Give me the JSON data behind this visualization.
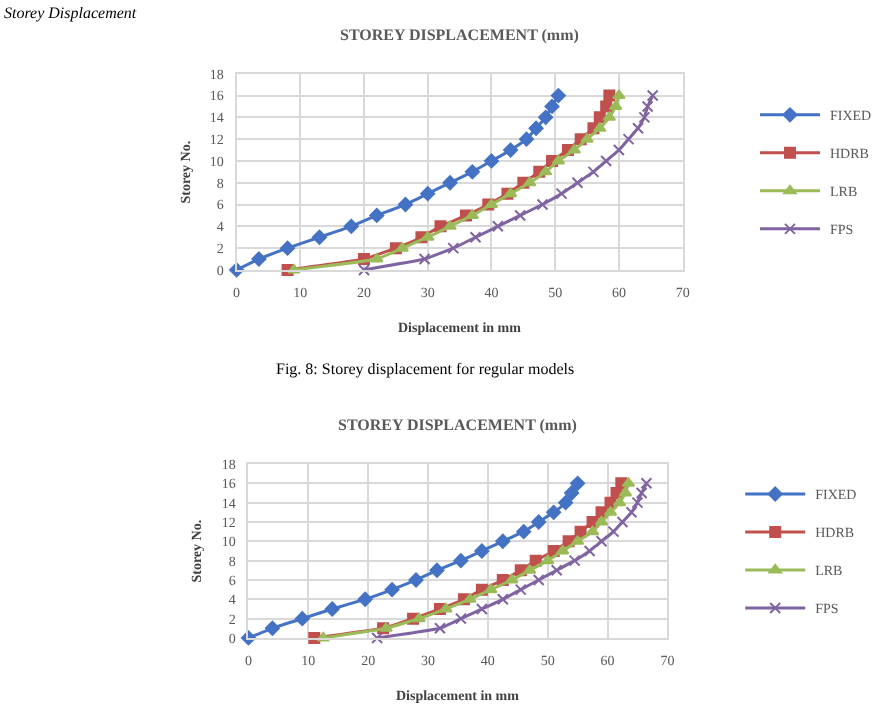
{
  "chart_data": [
    {
      "type": "line",
      "title": "STOREY DISPLACEMENT (mm)",
      "xlabel": "Displacement in mm",
      "ylabel": "Storey No.",
      "annotations": [
        "Storey Displacement",
        "Fig. 8: Storey displacement for regular models"
      ],
      "xlim": [
        0,
        70
      ],
      "xticks": [
        0,
        10,
        20,
        30,
        40,
        50,
        60,
        70
      ],
      "ylim": [
        0,
        18
      ],
      "yticks": [
        0,
        2,
        4,
        6,
        8,
        10,
        12,
        14,
        16,
        18
      ],
      "grid": true,
      "legend": "right",
      "line_style": "solid",
      "series": [
        {
          "name": "FIXED",
          "color": "#4472c4",
          "marker": "diamond",
          "x": [
            0,
            3.5,
            8,
            13,
            18,
            22,
            26.5,
            30,
            33.5,
            37,
            40,
            43,
            45.5,
            47,
            48.5,
            49.5,
            50.5
          ],
          "values": [
            0,
            1,
            2,
            3,
            4,
            5,
            6,
            7,
            8,
            9,
            10,
            11,
            12,
            13,
            14,
            15,
            16
          ]
        },
        {
          "name": "HDRB",
          "color": "#c0504d",
          "marker": "square",
          "x": [
            8,
            20,
            25,
            29,
            32,
            36,
            39.5,
            42.5,
            45,
            47.5,
            49.5,
            52,
            54,
            56,
            57,
            58,
            58.5
          ],
          "values": [
            0,
            1,
            2,
            3,
            4,
            5,
            6,
            7,
            8,
            9,
            10,
            11,
            12,
            13,
            14,
            15,
            16
          ]
        },
        {
          "name": "LRB",
          "color": "#9bbb59",
          "marker": "triangle",
          "x": [
            9,
            22,
            26,
            30,
            33.5,
            37,
            40,
            43,
            46,
            48.5,
            50.5,
            53,
            55,
            57,
            58.5,
            59.5,
            60
          ],
          "values": [
            0,
            1,
            2,
            3,
            4,
            5,
            6,
            7,
            8,
            9,
            10,
            11,
            12,
            13,
            14,
            15,
            16
          ]
        },
        {
          "name": "FPS",
          "color": "#8064a2",
          "marker": "cross",
          "x": [
            20,
            29.5,
            34,
            37.5,
            41,
            44.5,
            48,
            51,
            53.5,
            56,
            58,
            60,
            61.5,
            63,
            64,
            64.5,
            65.3
          ],
          "values": [
            0,
            1,
            2,
            3,
            4,
            5,
            6,
            7,
            8,
            9,
            10,
            11,
            12,
            13,
            14,
            15,
            16
          ]
        }
      ]
    },
    {
      "type": "line",
      "title": "STOREY DISPLACEMENT (mm)",
      "xlabel": "Displacement in mm",
      "ylabel": "Storey No.",
      "xlim": [
        0,
        70
      ],
      "xticks": [
        0,
        10,
        20,
        30,
        40,
        50,
        60,
        70
      ],
      "ylim": [
        0,
        18
      ],
      "yticks": [
        0,
        2,
        4,
        6,
        8,
        10,
        12,
        14,
        16,
        18
      ],
      "grid": true,
      "legend": "right",
      "line_style": "solid",
      "series": [
        {
          "name": "FIXED",
          "color": "#4472c4",
          "marker": "diamond",
          "x": [
            0,
            4,
            9,
            14,
            19.5,
            24,
            28,
            31.5,
            35.5,
            39,
            42.5,
            46,
            48.5,
            51,
            53,
            54,
            55
          ],
          "values": [
            0,
            1,
            2,
            3,
            4,
            5,
            6,
            7,
            8,
            9,
            10,
            11,
            12,
            13,
            14,
            15,
            16
          ]
        },
        {
          "name": "HDRB",
          "color": "#c0504d",
          "marker": "square",
          "x": [
            11,
            22.5,
            27.5,
            32,
            36,
            39,
            42.5,
            45.5,
            48,
            51,
            53.5,
            55.5,
            57.5,
            59,
            60.5,
            61.5,
            62.3
          ],
          "values": [
            0,
            1,
            2,
            3,
            4,
            5,
            6,
            7,
            8,
            9,
            10,
            11,
            12,
            13,
            14,
            15,
            16
          ]
        },
        {
          "name": "LRB",
          "color": "#9bbb59",
          "marker": "triangle",
          "x": [
            12.5,
            23,
            28.5,
            33,
            37,
            40.5,
            44,
            47,
            50,
            52.5,
            55,
            57.5,
            59,
            60.5,
            62,
            63,
            63.5
          ],
          "values": [
            0,
            1,
            2,
            3,
            4,
            5,
            6,
            7,
            8,
            9,
            10,
            11,
            12,
            13,
            14,
            15,
            16
          ]
        },
        {
          "name": "FPS",
          "color": "#8064a2",
          "marker": "cross",
          "x": [
            21.5,
            32,
            35.5,
            39,
            42.5,
            45.5,
            48.5,
            51.5,
            54.5,
            57,
            59,
            61,
            62.5,
            64,
            65,
            65.7,
            66.5
          ],
          "values": [
            0,
            1,
            2,
            3,
            4,
            5,
            6,
            7,
            8,
            9,
            10,
            11,
            12,
            13,
            14,
            15,
            16
          ]
        }
      ]
    }
  ]
}
